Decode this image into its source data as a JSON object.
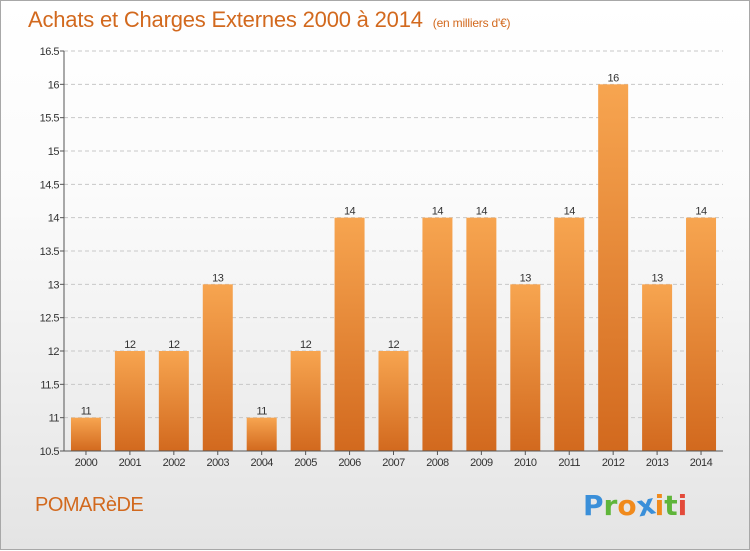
{
  "title": "Achats et Charges Externes 2000 à 2014",
  "unit": "(en milliers d'€)",
  "commune": "POMARèDE",
  "logo": {
    "text": "Proxiti",
    "colors": [
      "#3a8fd9",
      "#5fb53a",
      "#f08a1c",
      "#3a8fd9",
      "#f08a1c",
      "#5fb53a",
      "#e34a3a"
    ]
  },
  "colors": {
    "accent": "#d2691e",
    "bar_top": "#f7a550",
    "bar_bottom": "#d2691e",
    "grid": "#c8c8c8",
    "axis": "#555555"
  },
  "chart_data": {
    "type": "bar",
    "categories": [
      "2000",
      "2001",
      "2002",
      "2003",
      "2004",
      "2005",
      "2006",
      "2007",
      "2008",
      "2009",
      "2010",
      "2011",
      "2012",
      "2013",
      "2014"
    ],
    "values": [
      11,
      12,
      12,
      13,
      11,
      12,
      14,
      12,
      14,
      14,
      13,
      14,
      16,
      13,
      14
    ],
    "ylim": [
      10.5,
      16.5
    ],
    "yticks": [
      10.5,
      11,
      11.5,
      12,
      12.5,
      13,
      13.5,
      14,
      14.5,
      15,
      15.5,
      16,
      16.5
    ],
    "ytick_labels": [
      "10.5",
      "11",
      "11.5",
      "12",
      "12.5",
      "13",
      "13.5",
      "14",
      "14.5",
      "15",
      "15.5",
      "16",
      "16.5"
    ],
    "grid": true
  }
}
